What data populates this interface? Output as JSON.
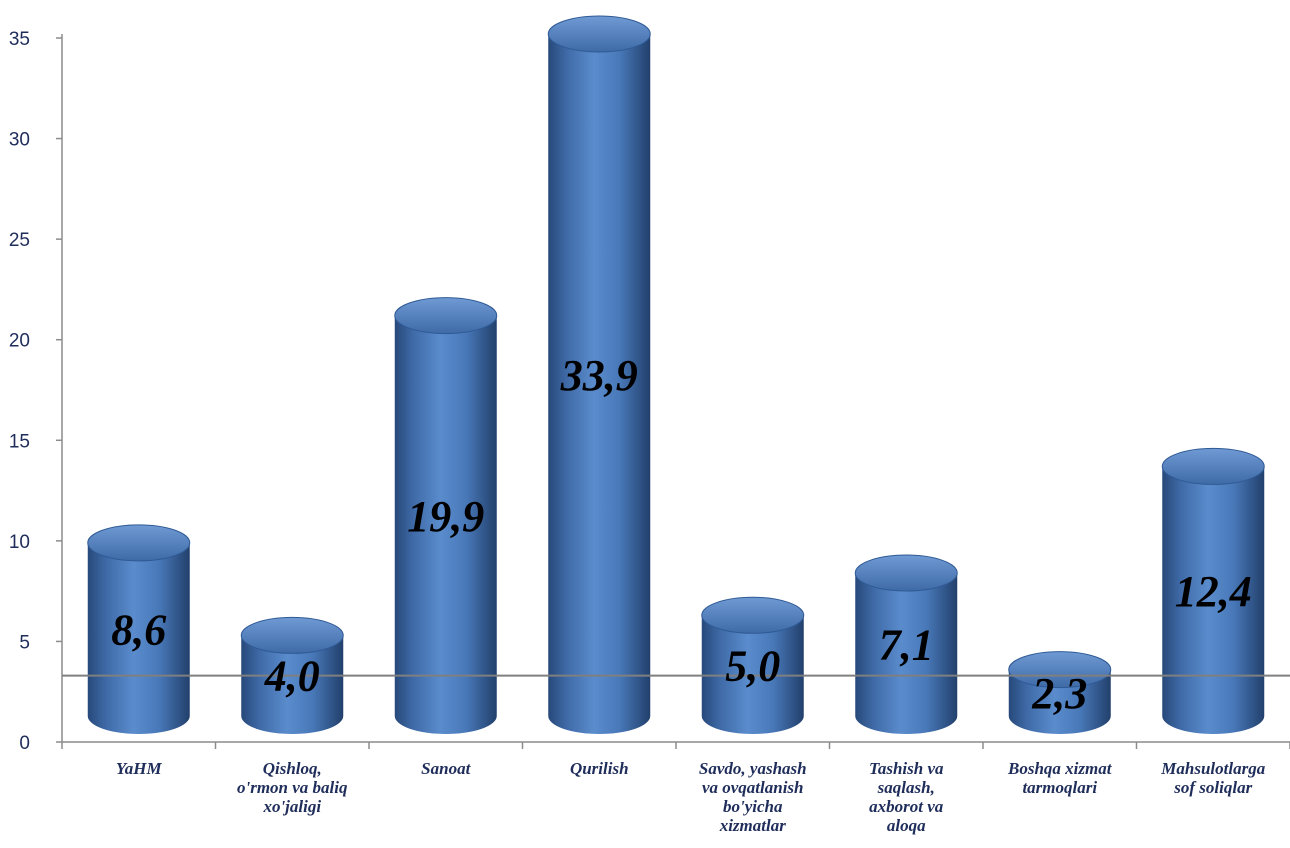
{
  "chart_data": {
    "type": "bar",
    "style": "3d-cylinder",
    "categories": [
      "YaHM",
      "Qishloq, o'rmon va baliq xo'jaligi",
      "Sanoat",
      "Qurilish",
      "Savdo, yashash va ovqatlanish bo'yicha xizmatlar",
      "Tashish va saqlash, axborot va aloqa",
      "Boshqa xizmat tarmoqlari",
      "Mahsulotlarga sof soliqlar"
    ],
    "category_lines": [
      [
        "YaHM"
      ],
      [
        "Qishloq,",
        "o'rmon va baliq",
        "xo'jaligi"
      ],
      [
        "Sanoat"
      ],
      [
        "Qurilish"
      ],
      [
        "Savdo, yashash",
        "va ovqatlanish",
        "bo'yicha",
        "xizmatlar"
      ],
      [
        "Tashish va",
        "saqlash,",
        "axborot va",
        "aloqa"
      ],
      [
        "Boshqa xizmat",
        "tarmoqlari"
      ],
      [
        "Mahsulotlarga",
        "sof soliqlar"
      ]
    ],
    "values": [
      8.6,
      4.0,
      19.9,
      33.9,
      5.0,
      7.1,
      2.3,
      12.4
    ],
    "data_labels": [
      "8,6",
      "4,0",
      "19,9",
      "33,9",
      "5,0",
      "7,1",
      "2,3",
      "12,4"
    ],
    "yticks": [
      "0",
      "5",
      "10",
      "15",
      "20",
      "25",
      "30",
      "35"
    ],
    "ylim": [
      0,
      35
    ],
    "reference_line_value": 3.3,
    "title": "",
    "xlabel": "",
    "ylabel": "",
    "bar_color": "#4f81bd",
    "bar_color_dark": "#2c5286",
    "axis_color": "#8c8c8c",
    "grid": false,
    "legend": "none"
  }
}
